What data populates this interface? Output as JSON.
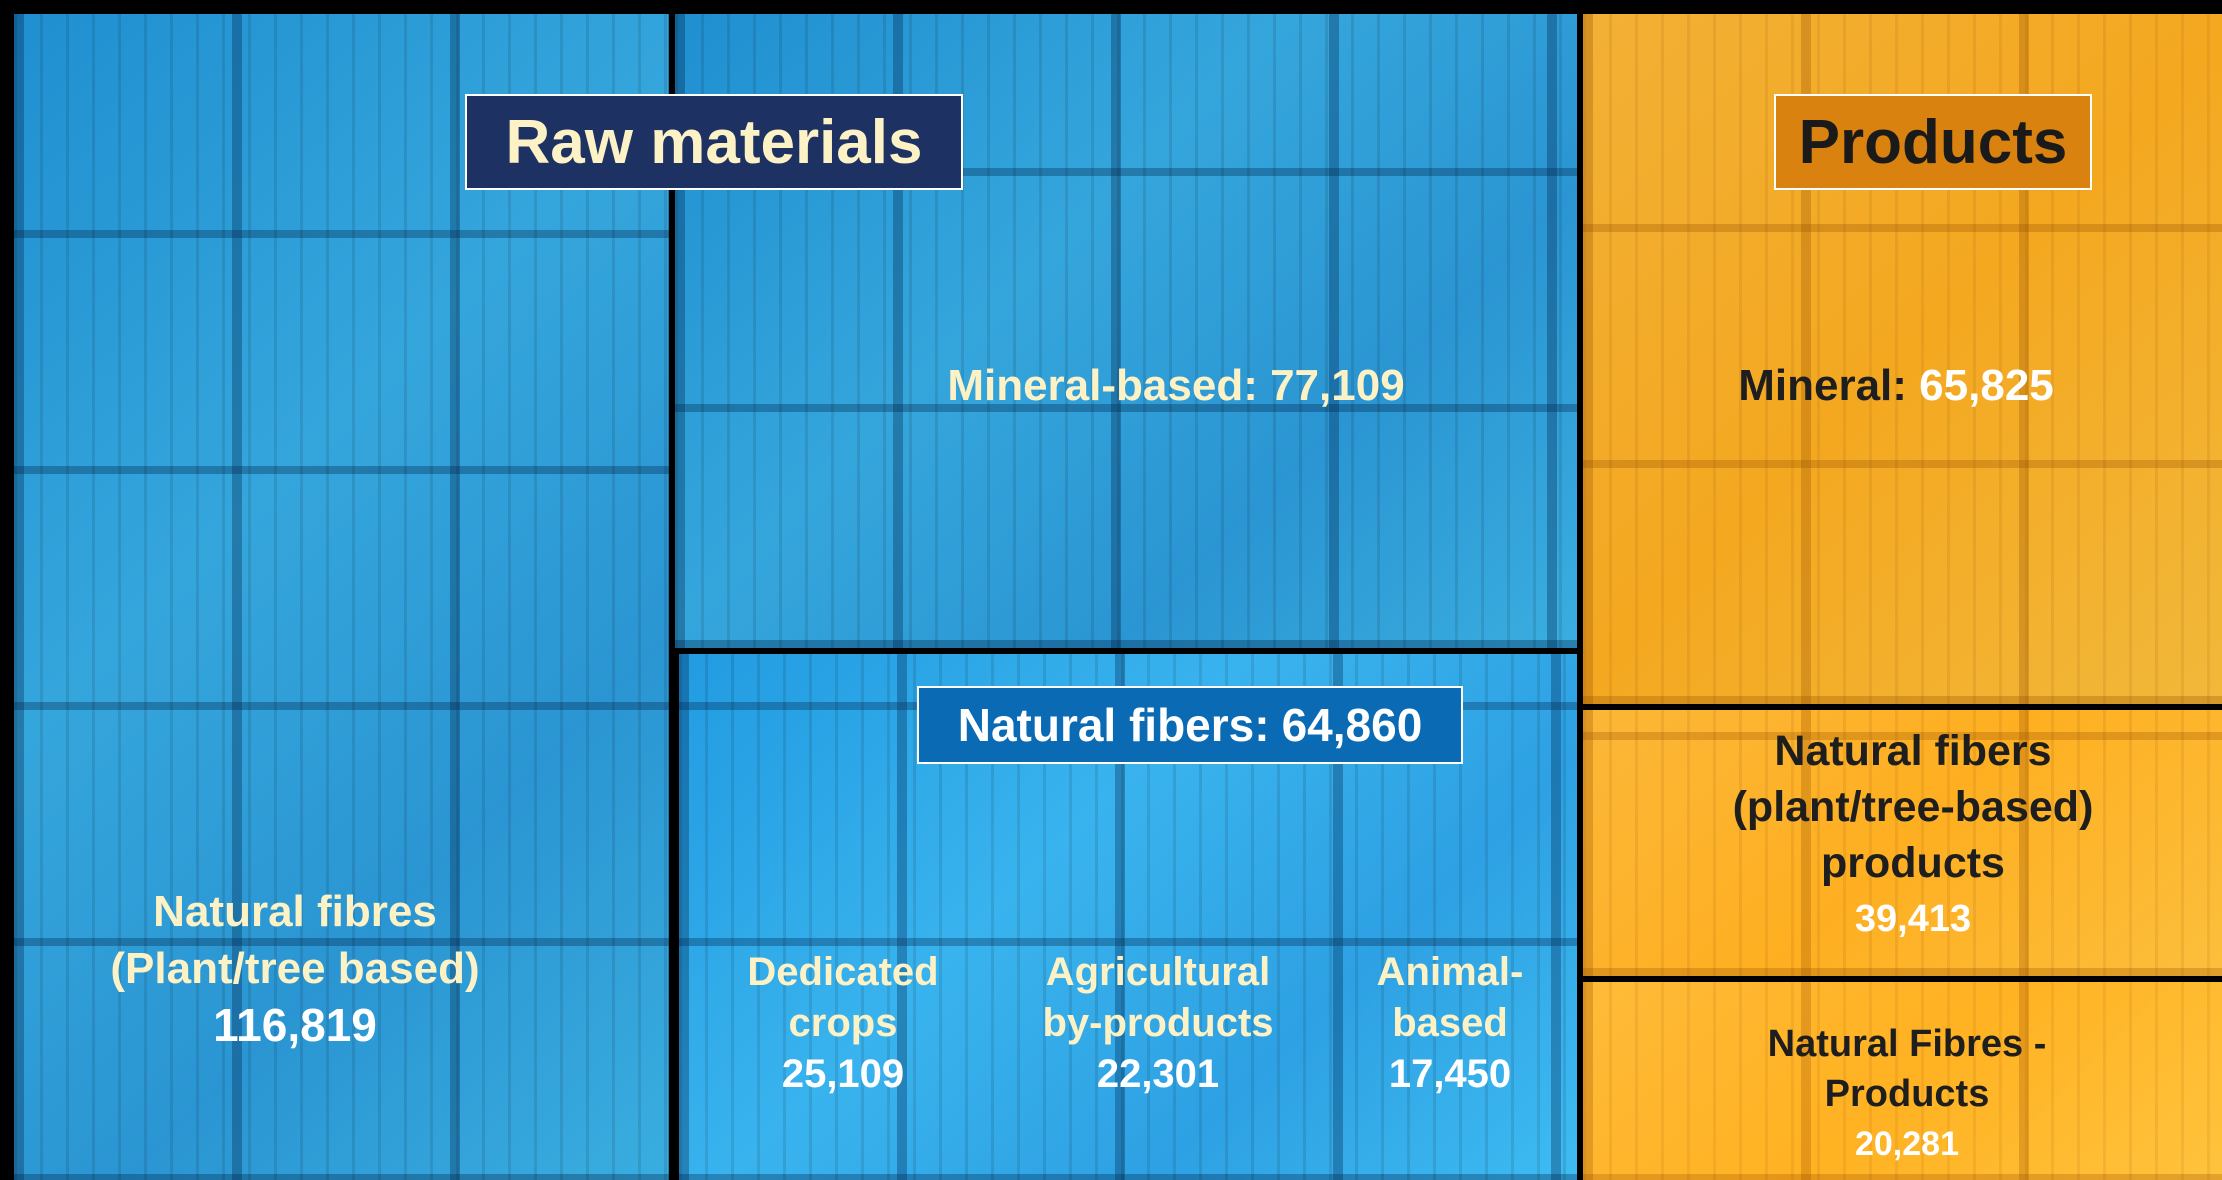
{
  "raw_materials": {
    "title": "Raw materials",
    "natural_fibres": {
      "label_lines": [
        "Natural fibres",
        "(Plant/tree based)"
      ],
      "value": "116,819"
    },
    "mineral_based": {
      "label": "Mineral-based:",
      "value": "77,109"
    },
    "natural_fibers": {
      "label": "Natural fibers:",
      "value": "64,860",
      "items": [
        {
          "label_lines": [
            "Dedicated",
            "crops"
          ],
          "value": "25,109"
        },
        {
          "label_lines": [
            "Agricultural",
            "by-products"
          ],
          "value": "22,301"
        },
        {
          "label_lines": [
            "Animal-",
            "based"
          ],
          "value": "17,450"
        }
      ]
    }
  },
  "products": {
    "title": "Products",
    "mineral": {
      "label": "Mineral:",
      "value": "65,825"
    },
    "natural_fibers_products": {
      "label_lines": [
        "Natural fibers",
        "(plant/tree-based)",
        "products"
      ],
      "value": "39,413"
    },
    "natural_fibres_products": {
      "label_lines": [
        "Natural Fibres -",
        "Products"
      ],
      "value": "20,281"
    }
  }
}
